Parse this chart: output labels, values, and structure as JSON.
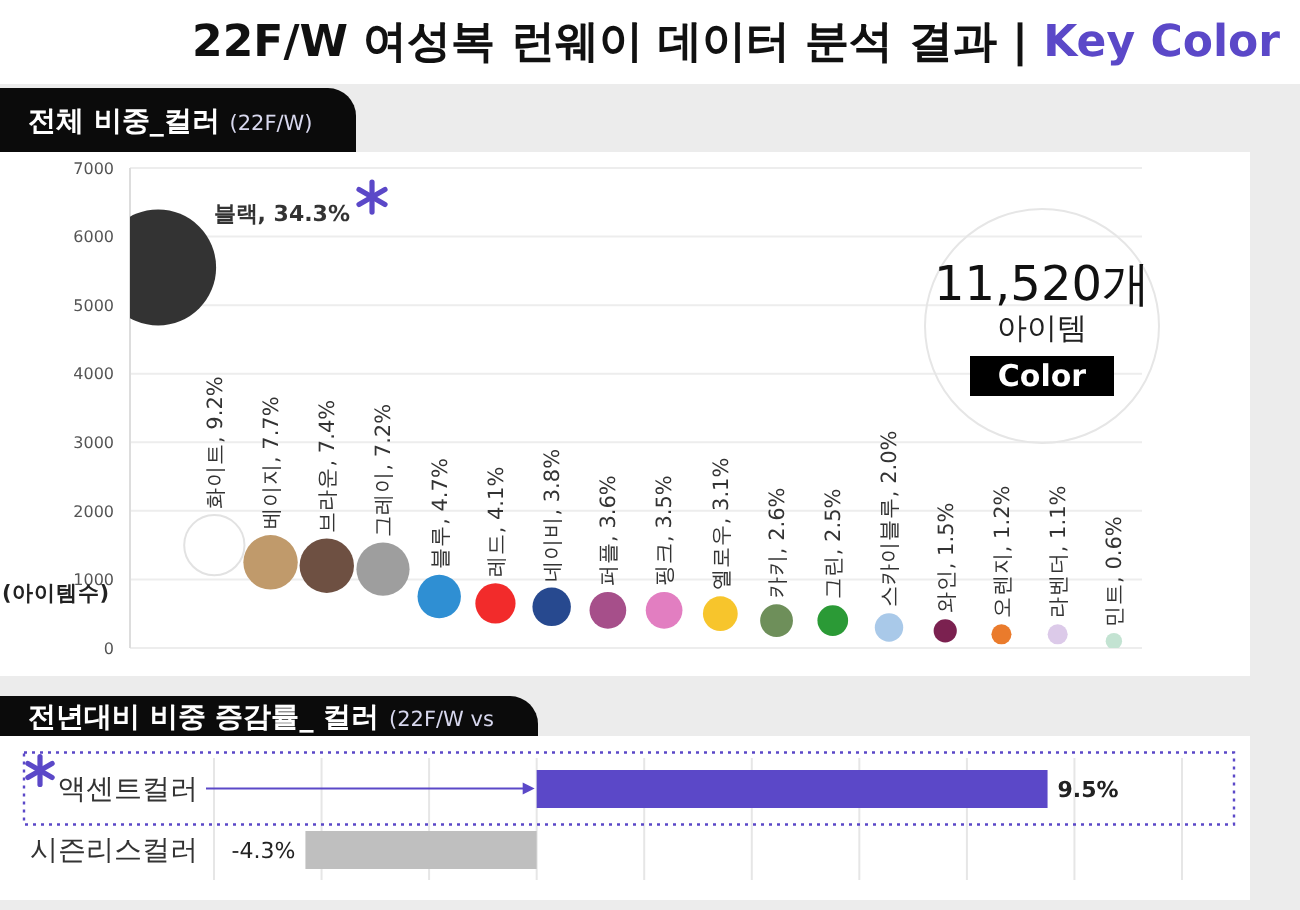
{
  "chart_data": [
    {
      "type": "bubble",
      "title": "22F/W 여성복 런웨이 데이터 분석 결과 | Key Color",
      "subtitle": "전체 비중_컬러 (22F/W)",
      "ylabel": "(아이템수)",
      "categories": [
        null,
        null,
        null,
        null,
        null,
        null,
        null,
        null,
        null,
        null,
        null,
        null,
        null,
        null,
        null,
        null,
        null,
        null
      ],
      "values": [
        5550,
        1500,
        1250,
        1200,
        1150,
        750,
        650,
        600,
        550,
        550,
        500,
        400,
        400,
        300,
        250,
        200,
        200,
        100
      ],
      "sizes": [
        1,
        0.27,
        0.22,
        0.22,
        0.21,
        0.14,
        0.12,
        0.11,
        0.1,
        0.1,
        0.09,
        0.08,
        0.07,
        0.06,
        0.04,
        0.03,
        0.03,
        0.02
      ],
      "colors": [
        "#333333",
        "#ffffff",
        "#c09a6b",
        "#6e5042",
        "#9e9e9e",
        "#2f8fd3",
        "#f22b2b",
        "#27498f",
        "#a64f8a",
        "#e27ec1",
        "#f7c52c",
        "#6e8f5a",
        "#2b9a36",
        "#a9c9e9",
        "#7b2150",
        "#ea7b2c",
        "#dccae9",
        "#c3e3d2"
      ],
      "ylim": [
        0,
        7000
      ],
      "yticks": [
        0,
        1000,
        2000,
        3000,
        4000,
        5000,
        6000,
        7000
      ],
      "grid": "y",
      "tick_labels": "y",
      "annotations": [
        "블랙, 34.3%",
        {
          "text": "화이트, 9.2%",
          "y": 1500
        },
        {
          "text": "베이지, 7.7%",
          "y": 1250
        },
        {
          "text": "브라운, 7.4%",
          "y": 1200
        },
        {
          "text": "그레이, 7.2%",
          "y": 1150
        },
        {
          "text": "블루, 4.7%",
          "y": 750
        },
        {
          "text": "레드, 4.1%",
          "y": 650
        },
        {
          "text": "네이비, 3.8%",
          "y": 600
        },
        {
          "text": "퍼플, 3.6%",
          "y": 550
        },
        {
          "text": "핑크, 3.5%",
          "y": 550
        },
        {
          "text": "옐로우, 3.1%",
          "y": 500
        },
        {
          "text": "카키, 2.6%",
          "y": 400
        },
        {
          "text": "그린, 2.5%",
          "y": 400
        },
        {
          "text": "스카이블루, 2.0%",
          "y": 300
        },
        {
          "text": "와인, 1.5%",
          "y": 250
        },
        {
          "text": "오렌지, 1.2%",
          "y": 200
        },
        {
          "text": "라벤더, 1.1%",
          "y": 200
        },
        {
          "text": "민트, 0.6%",
          "y": 100
        },
        "11,520개",
        "아이템",
        "Color"
      ]
    },
    {
      "type": "bar",
      "orientation": "horizontal",
      "title": "전년대비 비중 증감률_ 컬러 (22F/W vs",
      "categories": [
        "액센트컬러",
        "시즌리스컬러"
      ],
      "values": [
        9.5,
        -4.3
      ],
      "colors": [
        "#5b48c8",
        "#bfbfbf"
      ],
      "value_labels": [
        "9.5%",
        "-4.3%"
      ],
      "xlim": [
        -6,
        12
      ],
      "grid": "x",
      "tick_labels": "y"
    }
  ]
}
